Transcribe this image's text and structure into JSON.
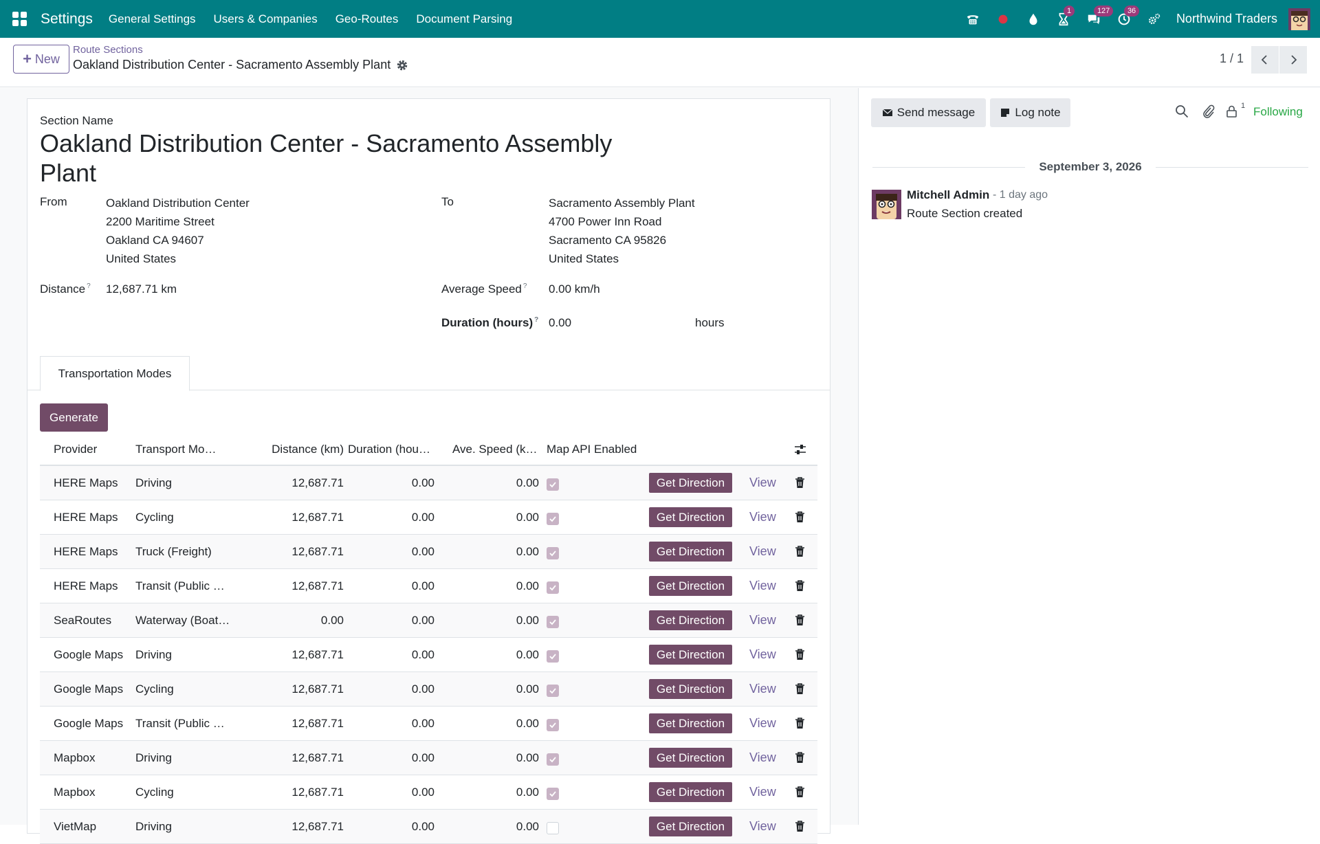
{
  "navbar": {
    "app_title": "Settings",
    "menus": [
      "General Settings",
      "Users & Companies",
      "Geo-Routes",
      "Document Parsing"
    ],
    "badges": {
      "activities": "1",
      "messages": "127",
      "clock": "36"
    },
    "company": "Northwind Traders"
  },
  "control": {
    "new_label": "New",
    "breadcrumb_parent": "Route Sections",
    "breadcrumb_current": "Oakland Distribution Center - Sacramento Assembly Plant",
    "pager": "1 / 1"
  },
  "form": {
    "section_name_label": "Section Name",
    "section_name": "Oakland Distribution Center - Sacramento Assembly Plant",
    "from_label": "From",
    "from_lines": [
      "Oakland Distribution Center",
      "2200 Maritime Street",
      "Oakland CA 94607",
      "United States"
    ],
    "to_label": "To",
    "to_lines": [
      "Sacramento Assembly Plant",
      "4700 Power Inn Road",
      "Sacramento CA 95826",
      "United States"
    ],
    "distance_label": "Distance",
    "distance": "12,687.71 km",
    "avg_speed_label": "Average Speed",
    "avg_speed": "0.00 km/h",
    "duration_label": "Duration (hours)",
    "duration": "0.00",
    "duration_unit": "hours",
    "help_mark": "?"
  },
  "tabs": {
    "transport_modes": "Transportation Modes"
  },
  "modes": {
    "generate_label": "Generate",
    "columns": [
      "Provider",
      "Transport Mo…",
      "Distance (km)",
      "Duration (hou…",
      "Ave. Speed (k…",
      "Map API Enabled"
    ],
    "get_direction_label": "Get Direction",
    "view_label": "View",
    "rows": [
      {
        "provider": "HERE Maps",
        "mode": "Driving",
        "distance": "12,687.71",
        "duration": "0.00",
        "speed": "0.00",
        "api": true
      },
      {
        "provider": "HERE Maps",
        "mode": "Cycling",
        "distance": "12,687.71",
        "duration": "0.00",
        "speed": "0.00",
        "api": true
      },
      {
        "provider": "HERE Maps",
        "mode": "Truck (Freight)",
        "distance": "12,687.71",
        "duration": "0.00",
        "speed": "0.00",
        "api": true
      },
      {
        "provider": "HERE Maps",
        "mode": "Transit (Public …",
        "distance": "12,687.71",
        "duration": "0.00",
        "speed": "0.00",
        "api": true
      },
      {
        "provider": "SeaRoutes",
        "mode": "Waterway (Boat…",
        "distance": "0.00",
        "duration": "0.00",
        "speed": "0.00",
        "api": true
      },
      {
        "provider": "Google Maps",
        "mode": "Driving",
        "distance": "12,687.71",
        "duration": "0.00",
        "speed": "0.00",
        "api": true
      },
      {
        "provider": "Google Maps",
        "mode": "Cycling",
        "distance": "12,687.71",
        "duration": "0.00",
        "speed": "0.00",
        "api": true
      },
      {
        "provider": "Google Maps",
        "mode": "Transit (Public …",
        "distance": "12,687.71",
        "duration": "0.00",
        "speed": "0.00",
        "api": true
      },
      {
        "provider": "Mapbox",
        "mode": "Driving",
        "distance": "12,687.71",
        "duration": "0.00",
        "speed": "0.00",
        "api": true
      },
      {
        "provider": "Mapbox",
        "mode": "Cycling",
        "distance": "12,687.71",
        "duration": "0.00",
        "speed": "0.00",
        "api": true
      },
      {
        "provider": "VietMap",
        "mode": "Driving",
        "distance": "12,687.71",
        "duration": "0.00",
        "speed": "0.00",
        "api": false
      }
    ]
  },
  "chatter": {
    "send_message": "Send message",
    "log_note": "Log note",
    "followers_count": "1",
    "following": "Following",
    "date": "September 3, 2026",
    "author": "Mitchell Admin",
    "time": "- 1 day ago",
    "body": "Route Section created"
  },
  "colors": {
    "navbar": "#017e84",
    "primary": "#714b67",
    "link": "#71639e",
    "following": "#28a745"
  }
}
